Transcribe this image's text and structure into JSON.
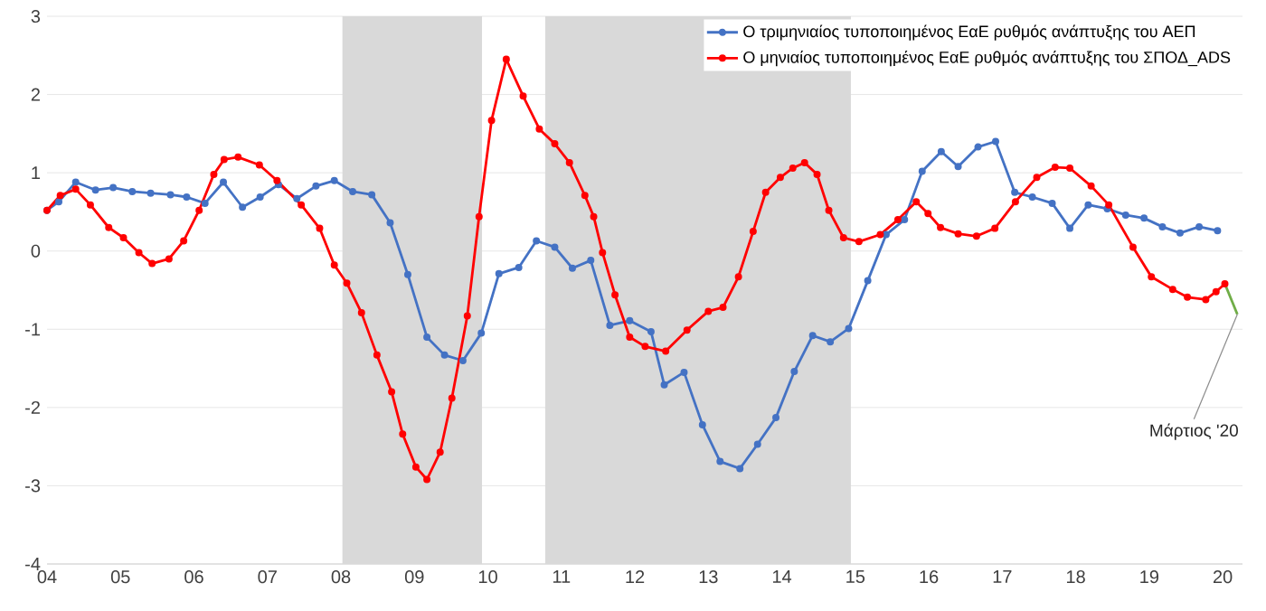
{
  "chart_data": {
    "type": "line",
    "xlim": [
      2004,
      2020.27
    ],
    "ylim": [
      -4,
      3
    ],
    "xticks": [
      {
        "value": 2004,
        "label": "04"
      },
      {
        "value": 2005,
        "label": "05"
      },
      {
        "value": 2006,
        "label": "06"
      },
      {
        "value": 2007,
        "label": "07"
      },
      {
        "value": 2008,
        "label": "08"
      },
      {
        "value": 2009,
        "label": "09"
      },
      {
        "value": 2010,
        "label": "10"
      },
      {
        "value": 2011,
        "label": "11"
      },
      {
        "value": 2012,
        "label": "12"
      },
      {
        "value": 2013,
        "label": "13"
      },
      {
        "value": 2014,
        "label": "14"
      },
      {
        "value": 2015,
        "label": "15"
      },
      {
        "value": 2016,
        "label": "16"
      },
      {
        "value": 2017,
        "label": "17"
      },
      {
        "value": 2018,
        "label": "18"
      },
      {
        "value": 2019,
        "label": "19"
      },
      {
        "value": 2020,
        "label": "20"
      }
    ],
    "yticks": [
      -4,
      -3,
      -2,
      -1,
      0,
      1,
      2,
      3
    ],
    "grid": "y",
    "legend": "top right",
    "line_style": "solid",
    "bands": [
      {
        "axis": "x",
        "from": 2008.02,
        "to": 2009.92,
        "color": "#d9d9d9"
      },
      {
        "axis": "x",
        "from": 2010.78,
        "to": 2014.94,
        "color": "#d9d9d9"
      }
    ],
    "annotations": [
      {
        "text": "Μάρτιος '20",
        "x": 2020.2,
        "y": -0.81
      }
    ],
    "series": [
      {
        "name": "Ο τριμηνιαίος τυποποιημένος ΕαΕ ρυθμός ανάπτυξης του ΑΕΠ",
        "color": "#4472c4",
        "marker": "circle",
        "x": [
          2004.0,
          2004.16,
          2004.39,
          2004.66,
          2004.9,
          2005.16,
          2005.41,
          2005.68,
          2005.9,
          2006.15,
          2006.4,
          2006.66,
          2006.9,
          2007.15,
          2007.4,
          2007.66,
          2007.91,
          2008.16,
          2008.42,
          2008.67,
          2008.91,
          2009.17,
          2009.41,
          2009.66,
          2009.91,
          2010.15,
          2010.42,
          2010.66,
          2010.91,
          2011.15,
          2011.4,
          2011.66,
          2011.93,
          2012.22,
          2012.4,
          2012.67,
          2012.92,
          2013.16,
          2013.43,
          2013.67,
          2013.92,
          2014.17,
          2014.42,
          2014.66,
          2014.91,
          2015.17,
          2015.42,
          2015.67,
          2015.91,
          2016.17,
          2016.4,
          2016.67,
          2016.91,
          2017.17,
          2017.41,
          2017.68,
          2017.92,
          2018.17,
          2018.43,
          2018.68,
          2018.93,
          2019.18,
          2019.42,
          2019.68,
          2019.93
        ],
        "values": [
          0.52,
          0.63,
          0.88,
          0.78,
          0.81,
          0.76,
          0.74,
          0.72,
          0.69,
          0.61,
          0.88,
          0.56,
          0.69,
          0.85,
          0.67,
          0.83,
          0.9,
          0.76,
          0.72,
          0.36,
          -0.3,
          -1.1,
          -1.33,
          -1.4,
          -1.05,
          -0.29,
          -0.21,
          0.13,
          0.05,
          -0.22,
          -0.12,
          -0.95,
          -0.89,
          -1.03,
          -1.71,
          -1.55,
          -2.22,
          -2.69,
          -2.78,
          -2.47,
          -2.13,
          -1.54,
          -1.08,
          -1.16,
          -0.99,
          -0.38,
          0.21,
          0.4,
          1.02,
          1.27,
          1.08,
          1.33,
          1.4,
          0.75,
          0.69,
          0.61,
          0.29,
          0.59,
          0.54,
          0.46,
          0.42,
          0.31,
          0.23,
          0.31,
          0.26
        ]
      },
      {
        "name": "Ο μηνιαίος τυποποιημένος ΕαΕ ρυθμός ανάπτυξης του ΣΠΟΔ_ADS",
        "color": "#ff0000",
        "marker": "circle",
        "x": [
          2004.0,
          2004.18,
          2004.39,
          2004.59,
          2004.84,
          2005.04,
          2005.25,
          2005.43,
          2005.66,
          2005.86,
          2006.07,
          2006.27,
          2006.41,
          2006.6,
          2006.89,
          2007.13,
          2007.46,
          2007.71,
          2007.91,
          2008.08,
          2008.28,
          2008.49,
          2008.69,
          2008.84,
          2009.02,
          2009.17,
          2009.35,
          2009.51,
          2009.72,
          2009.88,
          2010.05,
          2010.25,
          2010.48,
          2010.7,
          2010.91,
          2011.11,
          2011.32,
          2011.44,
          2011.56,
          2011.73,
          2011.93,
          2012.14,
          2012.42,
          2012.71,
          2013.0,
          2013.2,
          2013.41,
          2013.61,
          2013.78,
          2013.98,
          2014.15,
          2014.31,
          2014.48,
          2014.64,
          2014.84,
          2015.05,
          2015.34,
          2015.58,
          2015.83,
          2015.99,
          2016.16,
          2016.4,
          2016.65,
          2016.9,
          2017.18,
          2017.47,
          2017.72,
          2017.92,
          2018.21,
          2018.45,
          2018.78,
          2019.03,
          2019.32,
          2019.52,
          2019.77,
          2019.91,
          2020.03
        ],
        "values": [
          0.52,
          0.71,
          0.79,
          0.59,
          0.3,
          0.17,
          -0.02,
          -0.16,
          -0.1,
          0.13,
          0.52,
          0.98,
          1.17,
          1.2,
          1.1,
          0.9,
          0.59,
          0.29,
          -0.18,
          -0.41,
          -0.79,
          -1.33,
          -1.8,
          -2.34,
          -2.76,
          -2.92,
          -2.57,
          -1.88,
          -0.83,
          0.44,
          1.67,
          2.45,
          1.98,
          1.56,
          1.37,
          1.13,
          0.71,
          0.44,
          -0.02,
          -0.56,
          -1.1,
          -1.22,
          -1.28,
          -1.01,
          -0.77,
          -0.72,
          -0.33,
          0.25,
          0.75,
          0.94,
          1.06,
          1.13,
          0.98,
          0.52,
          0.17,
          0.12,
          0.21,
          0.4,
          0.63,
          0.48,
          0.3,
          0.22,
          0.19,
          0.29,
          0.63,
          0.94,
          1.07,
          1.06,
          0.83,
          0.59,
          0.05,
          -0.33,
          -0.49,
          -0.59,
          -0.62,
          -0.52,
          -0.42
        ]
      },
      {
        "color": "#70ad47",
        "marker": "none",
        "x": [
          2020.03,
          2020.2
        ],
        "values": [
          -0.42,
          -0.81
        ]
      }
    ]
  }
}
